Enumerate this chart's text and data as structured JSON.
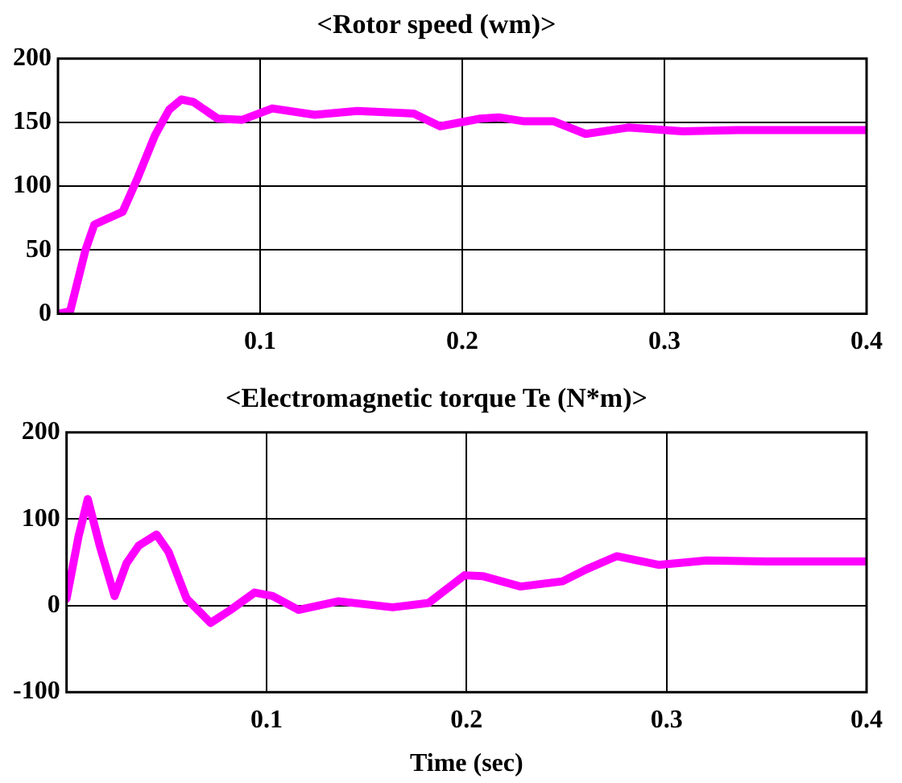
{
  "chart_data": [
    {
      "type": "line",
      "title": "<Rotor speed (wm)>",
      "xlim": [
        0,
        0.4
      ],
      "xticks": [
        {
          "value": 0,
          "label": null
        },
        0.1,
        0.2,
        0.3,
        0.4
      ],
      "ylim": [
        0,
        200
      ],
      "yticks": [
        0,
        50,
        100,
        150,
        200
      ],
      "grid": true,
      "legend": false,
      "series": [
        {
          "color": "#ff00ff",
          "x": [
            0,
            0.006,
            0.0136,
            0.018,
            0.032,
            0.039,
            0.048,
            0.055,
            0.061,
            0.067,
            0.079,
            0.091,
            0.106,
            0.127,
            0.148,
            0.176,
            0.189,
            0.209,
            0.218,
            0.23,
            0.245,
            0.261,
            0.282,
            0.309,
            0.336,
            0.4
          ],
          "values": [
            0,
            2,
            50,
            70,
            80,
            105,
            140,
            160,
            168,
            166,
            153,
            152,
            161,
            156,
            159,
            157,
            147,
            153,
            154,
            151,
            151,
            141,
            146,
            143,
            144,
            144
          ]
        }
      ]
    },
    {
      "type": "line",
      "title": "<Electromagnetic torque Te (N*m)>",
      "xlabel": "Time (sec)",
      "xlim": [
        0,
        0.4
      ],
      "xticks": [
        {
          "value": 0,
          "label": null
        },
        0.1,
        0.2,
        0.3,
        0.4
      ],
      "ylim": [
        -100,
        200
      ],
      "yticks": [
        -100,
        0,
        100,
        200
      ],
      "grid": true,
      "legend": false,
      "series": [
        {
          "color": "#ff00ff",
          "x": [
            0,
            0.006,
            0.0106,
            0.0166,
            0.024,
            0.03,
            0.036,
            0.045,
            0.051,
            0.06,
            0.072,
            0.082,
            0.094,
            0.103,
            0.116,
            0.136,
            0.163,
            0.181,
            0.199,
            0.208,
            0.227,
            0.248,
            0.26,
            0.275,
            0.296,
            0.32,
            0.35,
            0.4
          ],
          "values": [
            8,
            80,
            123,
            69,
            11,
            49,
            69,
            82,
            62,
            8,
            -20,
            -5,
            15,
            11,
            -5,
            5,
            -2,
            3,
            35,
            34,
            22,
            28,
            42,
            57,
            47,
            52,
            51,
            51
          ]
        }
      ]
    }
  ]
}
